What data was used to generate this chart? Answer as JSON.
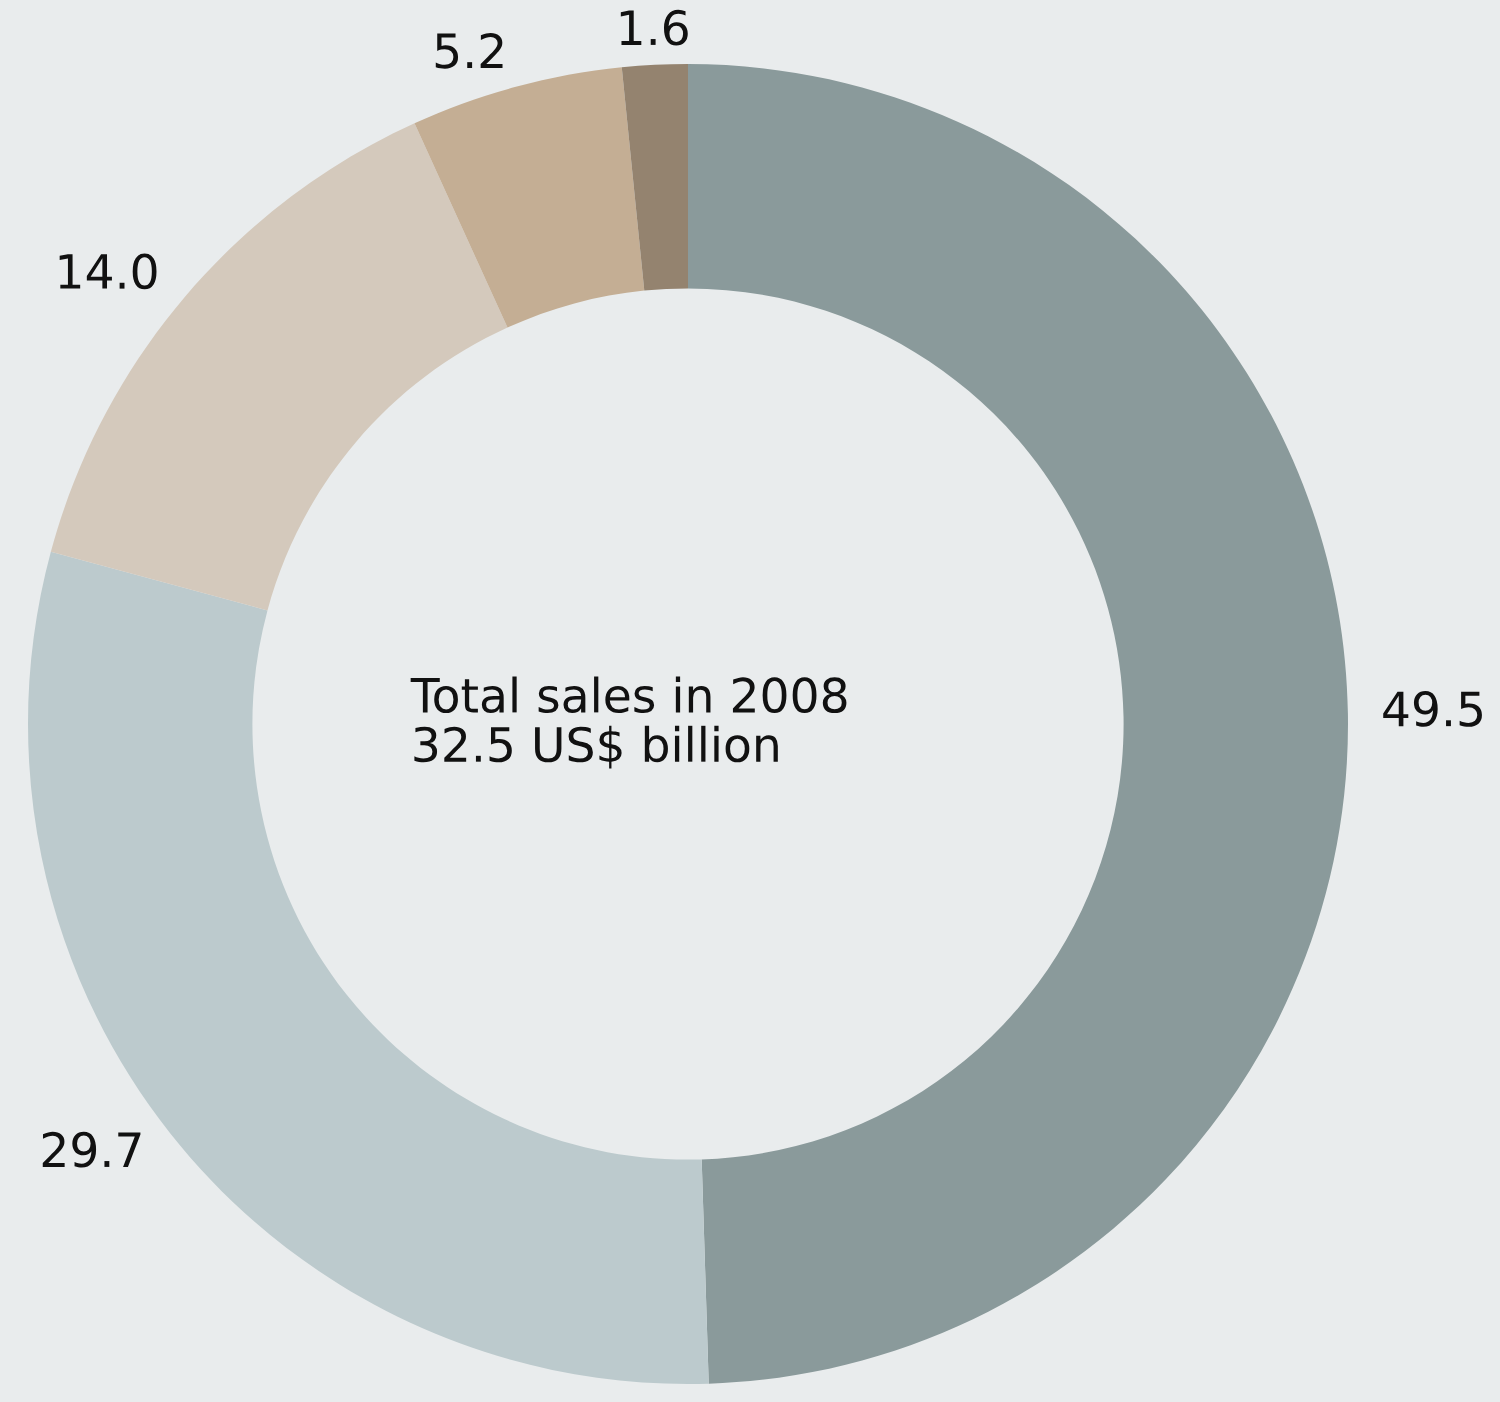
{
  "chart_data": {
    "type": "donut",
    "categories": [
      null,
      null,
      null,
      null,
      null
    ],
    "values": [
      49.5,
      29.7,
      14.0,
      5.2,
      1.6
    ],
    "colors": [
      "#8a9a9b",
      "#bccacd",
      "#d4c9bc",
      "#c4ae94",
      "#94836f"
    ],
    "value_labels": [
      "49.5",
      "29.7",
      "14.0",
      "5.2",
      "1.6"
    ],
    "legend": false,
    "annotations": [
      "Total sales in 2008\n32.5 US$ billion"
    ]
  }
}
